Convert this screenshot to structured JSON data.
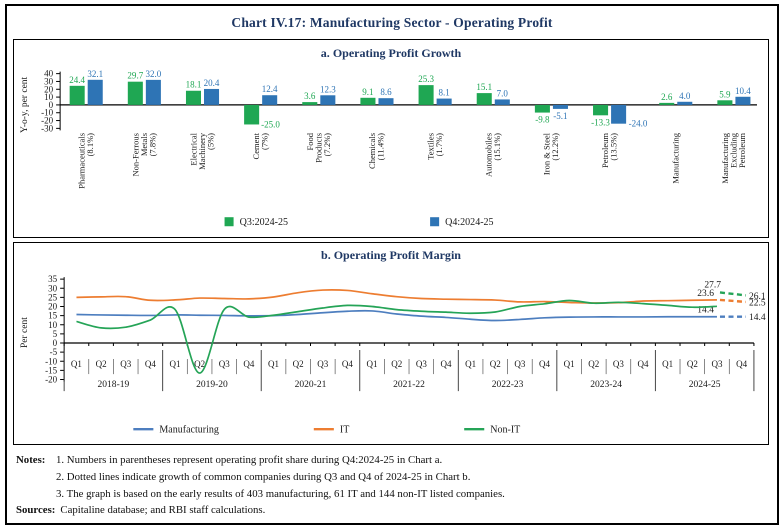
{
  "figure": {
    "title": "Chart IV.17: Manufacturing Sector - Operating Profit"
  },
  "colors": {
    "q3_green": "#1fa753",
    "q4_blue": "#2e74b5",
    "line_manufacturing": "#4d7ebf",
    "line_it": "#ed7d31",
    "line_nonit": "#25a457",
    "title_dark": "#1f3864",
    "axis_text": "#1a1a1a"
  },
  "chart_data": [
    {
      "type": "bar",
      "title": "a. Operating Profit Growth",
      "ylabel": "Y-o-y, per cent",
      "ylim": [
        -30,
        40
      ],
      "yticks": [
        40,
        30,
        20,
        10,
        0,
        -10,
        -20,
        -30
      ],
      "series_labels": [
        "Q3:2024-25",
        "Q4:2024-25"
      ],
      "categories": [
        {
          "label_lines": [
            "Pharmaceuticals",
            "(8.1%)"
          ],
          "q3": 24.4,
          "q4": 32.1
        },
        {
          "label_lines": [
            "Non-Ferrous",
            "Metals",
            "(7.8%)"
          ],
          "q3": 29.7,
          "q4": 32.0
        },
        {
          "label_lines": [
            "Electrical",
            "Machinery",
            "(5%)"
          ],
          "q3": 18.1,
          "q4": 20.4
        },
        {
          "label_lines": [
            "Cement",
            "(7%)"
          ],
          "q3": -25.0,
          "q4": 12.4
        },
        {
          "label_lines": [
            "Food",
            "Products",
            "(7.2%)"
          ],
          "q3": 3.6,
          "q4": 12.3
        },
        {
          "label_lines": [
            "Chemicals",
            "(11.4%)"
          ],
          "q3": 9.1,
          "q4": 8.6
        },
        {
          "label_lines": [
            "Textiles",
            "(1.7%)"
          ],
          "q3": 25.3,
          "q4": 8.1
        },
        {
          "label_lines": [
            "Automobiles",
            "(15.1%)"
          ],
          "q3": 15.1,
          "q4": 7.0
        },
        {
          "label_lines": [
            "Iron & Steel",
            "(12.2%)"
          ],
          "q3": -9.8,
          "q4": -5.1
        },
        {
          "label_lines": [
            "Petroleum",
            "(13.5%)"
          ],
          "q3": -13.3,
          "q4": -24.0
        },
        {
          "label_lines": [
            "Manufacturing"
          ],
          "q3": 2.6,
          "q4": 4.0
        },
        {
          "label_lines": [
            "Manufacturing",
            "Excluding",
            "Petroleum"
          ],
          "q3": 5.9,
          "q4": 10.4
        }
      ]
    },
    {
      "type": "line",
      "title": "b. Operating Profit Margin",
      "ylabel": "Per cent",
      "ylim": [
        -20,
        35
      ],
      "yticks": [
        35,
        30,
        25,
        20,
        15,
        10,
        5,
        0,
        -5,
        -10,
        -15,
        -20
      ],
      "quarters": [
        "Q1",
        "Q2",
        "Q3",
        "Q4"
      ],
      "years": [
        "2018-19",
        "2019-20",
        "2020-21",
        "2021-22",
        "2022-23",
        "2023-24",
        "2024-25"
      ],
      "series": [
        {
          "name": "Manufacturing",
          "color_key": "line_manufacturing",
          "values": [
            15.6,
            15.4,
            15.2,
            15.1,
            15.4,
            15.2,
            15.1,
            14.9,
            15.0,
            15.6,
            16.6,
            17.4,
            17.6,
            15.9,
            14.7,
            14.0,
            13.0,
            12.3,
            12.9,
            13.8,
            14.2,
            14.3,
            14.3,
            14.3,
            14.4,
            14.4,
            14.4
          ],
          "dashed": {
            "q3_value": 14.4,
            "q4_value": 14.4,
            "q3_label": "14.4",
            "q4_label": "14.4"
          }
        },
        {
          "name": "IT",
          "color_key": "line_it",
          "values": [
            25.0,
            25.3,
            25.4,
            23.4,
            23.6,
            24.6,
            24.4,
            24.2,
            25.2,
            27.6,
            29.0,
            28.8,
            27.0,
            25.4,
            24.4,
            24.0,
            23.8,
            23.5,
            22.5,
            22.7,
            22.2,
            21.9,
            22.1,
            23.0,
            23.2,
            23.4,
            23.6
          ],
          "dashed": {
            "q3_value": 23.6,
            "q4_value": 22.5,
            "q3_label": "23.6",
            "q4_label": "22.5"
          }
        },
        {
          "name": "Non-IT",
          "color_key": "line_nonit",
          "values": [
            11.8,
            8.3,
            8.7,
            12.6,
            18.4,
            -16.5,
            18.4,
            14.2,
            15.2,
            17.2,
            19.2,
            20.6,
            20.0,
            18.3,
            17.4,
            16.9,
            16.3,
            17.0,
            20.0,
            21.5,
            23.3,
            21.8,
            22.3,
            21.6,
            20.6,
            19.6,
            20.1
          ],
          "dashed": {
            "q3_value": 27.7,
            "q4_value": 26.1,
            "q3_label": "27.7",
            "q4_label": "26.1"
          }
        }
      ],
      "legend": [
        "Manufacturing",
        "IT",
        "Non-IT"
      ]
    }
  ],
  "notes": {
    "label": "Notes:",
    "items": [
      "1.  Numbers in parentheses represent operating profit share during Q4:2024-25 in Chart a.",
      "2.  Dotted lines indicate growth of common companies during Q3 and Q4 of 2024-25 in Chart b.",
      "3.  The graph is based on the early results of 403 manufacturing, 61 IT and 144 non-IT listed companies."
    ],
    "sources_label": "Sources:",
    "sources_text": "Capitaline database; and RBI staff calculations."
  }
}
